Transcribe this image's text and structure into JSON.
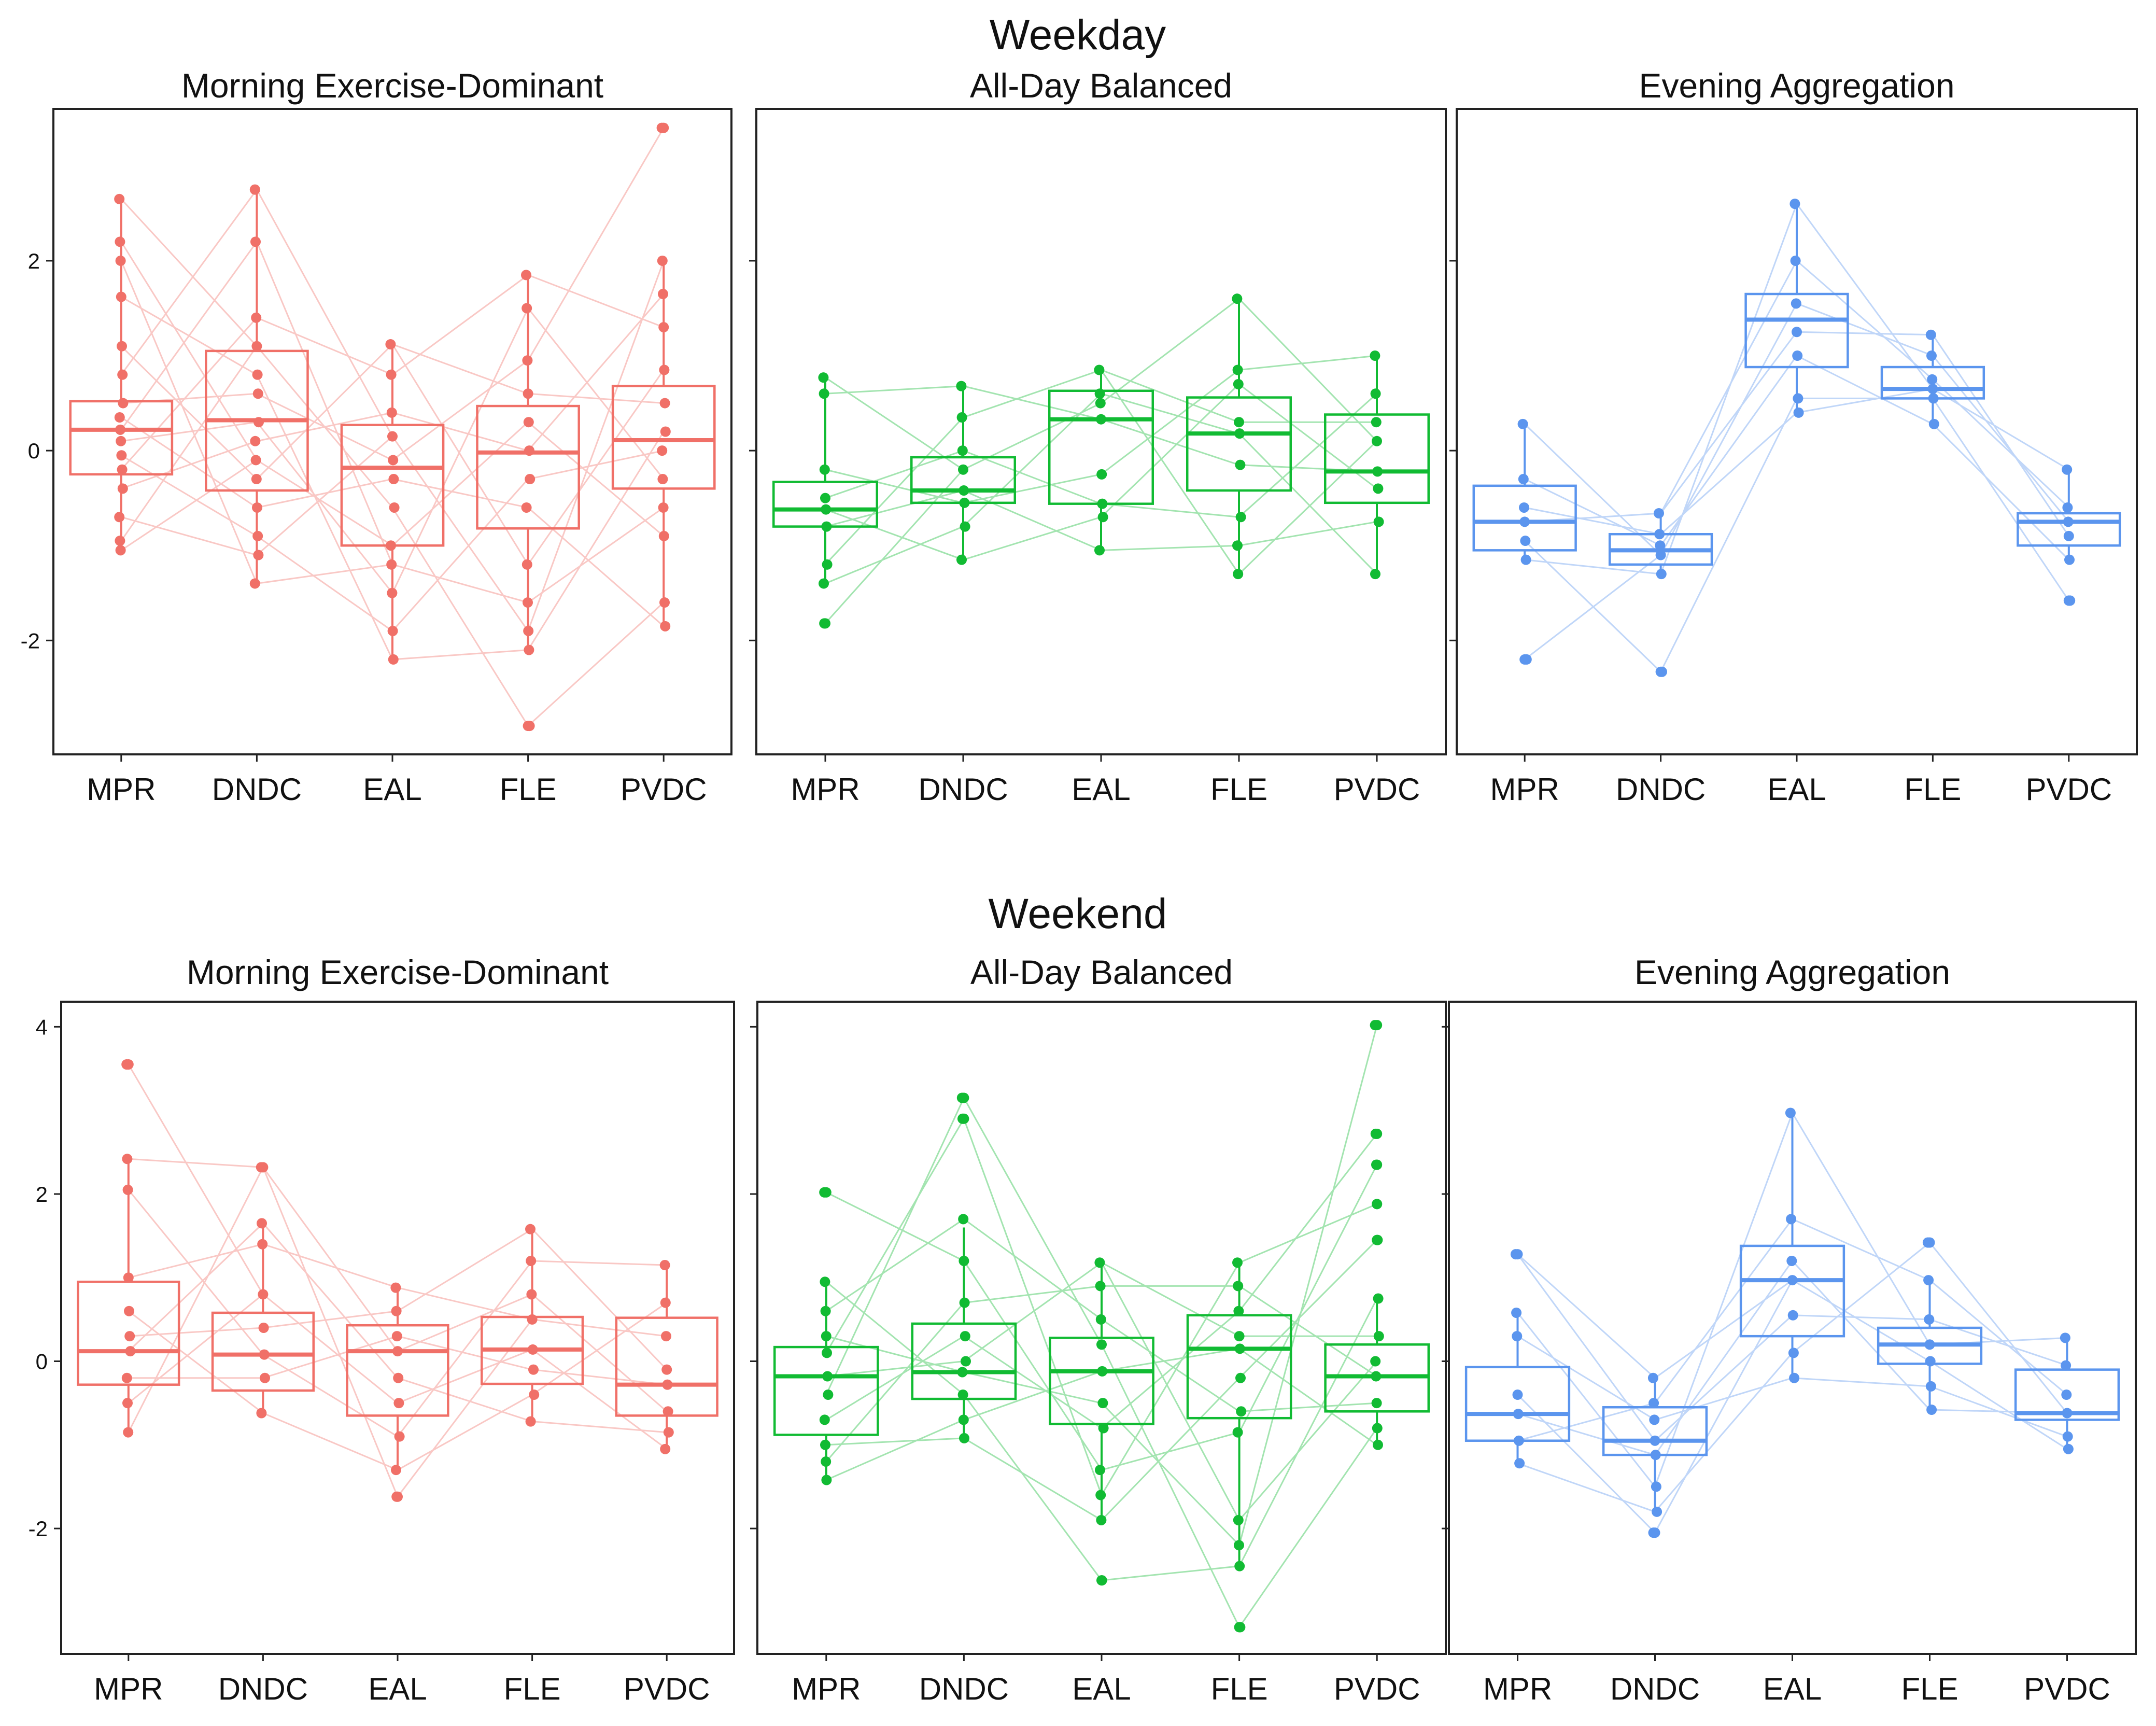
{
  "titles": {
    "weekday": "Weekday",
    "weekend": "Weekend"
  },
  "colors": {
    "morning": "#F07068",
    "balanced": "#11BB33",
    "evening": "#5B95EE"
  },
  "chart_data": [
    {
      "type": "box",
      "section": "Weekday",
      "title": "Morning Exercise-Dominant",
      "color": "#F07068",
      "categories": [
        "MPR",
        "DNDC",
        "EAL",
        "FLE",
        "PVDC"
      ],
      "yticks": [
        -2,
        0,
        2
      ],
      "ytick_labels": [
        "-2",
        "0",
        "2"
      ],
      "ylim": [
        -3.2,
        3.6
      ],
      "boxes": [
        {
          "q1": -0.25,
          "median": 0.22,
          "q3": 0.52,
          "whisker_low": -1.05,
          "whisker_high": 2.65
        },
        {
          "q1": -0.42,
          "median": 0.32,
          "q3": 1.05,
          "whisker_low": -1.4,
          "whisker_high": 2.75
        },
        {
          "q1": -1.0,
          "median": -0.18,
          "q3": 0.27,
          "whisker_low": -2.2,
          "whisker_high": 1.12
        },
        {
          "q1": -0.82,
          "median": -0.02,
          "q3": 0.47,
          "whisker_low": -2.1,
          "whisker_high": 1.85
        },
        {
          "q1": -0.4,
          "median": 0.11,
          "q3": 0.68,
          "whisker_low": -1.85,
          "whisker_high": 2.0
        }
      ],
      "outliers": [
        [],
        [],
        [],
        [
          -2.9
        ],
        [
          3.4
        ]
      ],
      "points": [
        [
          2.65,
          2.2,
          2.0,
          1.62,
          1.1,
          0.8,
          0.5,
          0.35,
          0.22,
          0.1,
          -0.05,
          -0.2,
          -0.4,
          -0.7,
          -0.95,
          -1.05
        ],
        [
          2.75,
          2.2,
          1.4,
          1.1,
          0.8,
          0.6,
          0.3,
          0.1,
          -0.1,
          -0.3,
          -0.6,
          -0.9,
          -1.1,
          -1.4
        ],
        [
          1.12,
          0.8,
          0.4,
          0.15,
          -0.1,
          -0.3,
          -0.6,
          -1.0,
          -1.2,
          -1.5,
          -1.9,
          -2.2
        ],
        [
          1.85,
          1.5,
          0.95,
          0.6,
          0.3,
          0.0,
          -0.3,
          -0.6,
          -1.2,
          -1.6,
          -1.9,
          -2.1,
          -2.9
        ],
        [
          3.4,
          2.0,
          1.65,
          1.3,
          0.85,
          0.5,
          0.2,
          0.0,
          -0.3,
          -0.6,
          -0.9,
          -1.6,
          -1.85
        ]
      ]
    },
    {
      "type": "box",
      "section": "Weekday",
      "title": "All-Day Balanced",
      "color": "#11BB33",
      "categories": [
        "MPR",
        "DNDC",
        "EAL",
        "FLE",
        "PVDC"
      ],
      "yticks": [
        -2,
        0,
        2
      ],
      "ytick_labels": [],
      "ylim": [
        -3.2,
        3.6
      ],
      "boxes": [
        {
          "q1": -0.8,
          "median": -0.62,
          "q3": -0.33,
          "whisker_low": -1.4,
          "whisker_high": 0.77
        },
        {
          "q1": -0.55,
          "median": -0.42,
          "q3": -0.07,
          "whisker_low": -1.15,
          "whisker_high": 0.68
        },
        {
          "q1": -0.56,
          "median": 0.33,
          "q3": 0.63,
          "whisker_low": -1.05,
          "whisker_high": 0.85
        },
        {
          "q1": -0.42,
          "median": 0.18,
          "q3": 0.56,
          "whisker_low": -1.3,
          "whisker_high": 1.6
        },
        {
          "q1": -0.55,
          "median": -0.22,
          "q3": 0.38,
          "whisker_low": -1.3,
          "whisker_high": 1.0
        }
      ],
      "outliers": [
        [
          -1.82
        ],
        [],
        [],
        [],
        []
      ],
      "points": [
        [
          0.77,
          0.6,
          -0.2,
          -0.5,
          -0.62,
          -0.8,
          -1.2,
          -1.4,
          -1.82
        ],
        [
          0.68,
          0.35,
          0.0,
          -0.2,
          -0.42,
          -0.55,
          -0.8,
          -1.15
        ],
        [
          0.85,
          0.6,
          0.5,
          0.33,
          -0.25,
          -0.56,
          -0.7,
          -1.05
        ],
        [
          1.6,
          0.85,
          0.7,
          0.3,
          0.18,
          -0.15,
          -0.7,
          -1.0,
          -1.3
        ],
        [
          1.0,
          0.6,
          0.3,
          0.1,
          -0.22,
          -0.4,
          -0.75,
          -1.3
        ]
      ]
    },
    {
      "type": "box",
      "section": "Weekday",
      "title": "Evening Aggregation",
      "color": "#5B95EE",
      "categories": [
        "MPR",
        "DNDC",
        "EAL",
        "FLE",
        "PVDC"
      ],
      "yticks": [
        -2,
        0,
        2
      ],
      "ytick_labels": [],
      "ylim": [
        -3.2,
        3.6
      ],
      "boxes": [
        {
          "q1": -1.05,
          "median": -0.75,
          "q3": -0.37,
          "whisker_low": -1.15,
          "whisker_high": 0.28
        },
        {
          "q1": -1.2,
          "median": -1.05,
          "q3": -0.88,
          "whisker_low": -1.3,
          "whisker_high": -0.66
        },
        {
          "q1": 0.88,
          "median": 1.38,
          "q3": 1.65,
          "whisker_low": 0.4,
          "whisker_high": 2.6
        },
        {
          "q1": 0.55,
          "median": 0.65,
          "q3": 0.88,
          "whisker_low": 0.28,
          "whisker_high": 1.22
        },
        {
          "q1": -1.0,
          "median": -0.75,
          "q3": -0.66,
          "whisker_low": -1.15,
          "whisker_high": -0.2
        }
      ],
      "outliers": [
        [
          -2.2
        ],
        [
          -2.33
        ],
        [],
        [],
        [
          -1.58
        ]
      ],
      "points": [
        [
          0.28,
          -0.3,
          -0.6,
          -0.75,
          -0.95,
          -1.15,
          -2.2
        ],
        [
          -0.66,
          -0.88,
          -1.0,
          -1.1,
          -1.3,
          -2.33
        ],
        [
          2.6,
          2.0,
          1.55,
          1.25,
          1.0,
          0.55,
          0.4
        ],
        [
          1.22,
          1.0,
          0.75,
          0.65,
          0.55,
          0.28
        ],
        [
          -0.2,
          -0.6,
          -0.75,
          -0.9,
          -1.15,
          -1.58
        ]
      ]
    },
    {
      "type": "box",
      "section": "Weekend",
      "title": "Morning Exercise-Dominant",
      "color": "#F07068",
      "categories": [
        "MPR",
        "DNDC",
        "EAL",
        "FLE",
        "PVDC"
      ],
      "yticks": [
        -2,
        0,
        2,
        4
      ],
      "ytick_labels": [
        "-2",
        "0",
        "2",
        "4"
      ],
      "ylim": [
        -3.5,
        4.3
      ],
      "boxes": [
        {
          "q1": -0.28,
          "median": 0.12,
          "q3": 0.95,
          "whisker_low": -0.85,
          "whisker_high": 2.42
        },
        {
          "q1": -0.35,
          "median": 0.08,
          "q3": 0.58,
          "whisker_low": -0.62,
          "whisker_high": 1.65
        },
        {
          "q1": -0.65,
          "median": 0.12,
          "q3": 0.43,
          "whisker_low": -1.3,
          "whisker_high": 0.88
        },
        {
          "q1": -0.27,
          "median": 0.14,
          "q3": 0.53,
          "whisker_low": -0.72,
          "whisker_high": 1.58
        },
        {
          "q1": -0.65,
          "median": -0.28,
          "q3": 0.52,
          "whisker_low": -1.05,
          "whisker_high": 1.15
        }
      ],
      "outliers": [
        [
          3.55
        ],
        [
          2.32
        ],
        [
          -1.62
        ],
        [],
        []
      ],
      "points": [
        [
          3.55,
          2.42,
          2.05,
          1.0,
          0.6,
          0.3,
          0.12,
          -0.2,
          -0.5,
          -0.85
        ],
        [
          2.32,
          1.65,
          1.4,
          0.8,
          0.4,
          0.08,
          -0.2,
          -0.62
        ],
        [
          0.88,
          0.6,
          0.3,
          0.12,
          -0.2,
          -0.5,
          -0.9,
          -1.3,
          -1.62
        ],
        [
          1.58,
          1.2,
          0.8,
          0.5,
          0.14,
          -0.1,
          -0.4,
          -0.72
        ],
        [
          1.15,
          0.7,
          0.3,
          -0.1,
          -0.28,
          -0.6,
          -0.85,
          -1.05
        ]
      ]
    },
    {
      "type": "box",
      "section": "Weekend",
      "title": "All-Day Balanced",
      "color": "#11BB33",
      "categories": [
        "MPR",
        "DNDC",
        "EAL",
        "FLE",
        "PVDC"
      ],
      "yticks": [
        -2,
        0,
        2,
        4
      ],
      "ytick_labels": [],
      "ylim": [
        -3.5,
        4.3
      ],
      "boxes": [
        {
          "q1": -0.88,
          "median": -0.18,
          "q3": 0.17,
          "whisker_low": -1.42,
          "whisker_high": 0.95
        },
        {
          "q1": -0.45,
          "median": -0.13,
          "q3": 0.45,
          "whisker_low": -0.92,
          "whisker_high": 1.6
        },
        {
          "q1": -0.75,
          "median": -0.12,
          "q3": 0.28,
          "whisker_low": -1.9,
          "whisker_high": 1.18
        },
        {
          "q1": -0.68,
          "median": 0.15,
          "q3": 0.55,
          "whisker_low": -2.45,
          "whisker_high": 1.18
        },
        {
          "q1": -0.6,
          "median": -0.18,
          "q3": 0.2,
          "whisker_low": -1.0,
          "whisker_high": 0.75
        }
      ],
      "outliers": [
        [
          2.02
        ],
        [
          3.15,
          2.9
        ],
        [
          -2.62
        ],
        [
          -3.18
        ],
        [
          4.02,
          2.72,
          2.35,
          1.88,
          1.45
        ]
      ],
      "points": [
        [
          2.02,
          0.95,
          0.6,
          0.3,
          0.1,
          -0.18,
          -0.4,
          -0.7,
          -1.0,
          -1.2,
          -1.42
        ],
        [
          3.15,
          2.9,
          1.7,
          1.2,
          0.7,
          0.3,
          0.0,
          -0.13,
          -0.4,
          -0.7,
          -0.92
        ],
        [
          1.18,
          0.9,
          0.5,
          0.2,
          -0.12,
          -0.5,
          -0.8,
          -1.3,
          -1.6,
          -1.9,
          -2.62
        ],
        [
          1.18,
          0.9,
          0.6,
          0.3,
          0.15,
          -0.2,
          -0.6,
          -0.85,
          -1.9,
          -2.2,
          -2.45,
          -3.18
        ],
        [
          4.02,
          2.72,
          2.35,
          1.88,
          1.45,
          0.75,
          0.3,
          0.0,
          -0.18,
          -0.5,
          -0.8,
          -1.0
        ]
      ]
    },
    {
      "type": "box",
      "section": "Weekend",
      "title": "Evening Aggregation",
      "color": "#5B95EE",
      "categories": [
        "MPR",
        "DNDC",
        "EAL",
        "FLE",
        "PVDC"
      ],
      "yticks": [
        -2,
        0,
        2,
        4
      ],
      "ytick_labels": [],
      "ylim": [
        -3.5,
        4.3
      ],
      "boxes": [
        {
          "q1": -0.95,
          "median": -0.63,
          "q3": -0.07,
          "whisker_low": -1.22,
          "whisker_high": 0.58
        },
        {
          "q1": -1.12,
          "median": -0.95,
          "q3": -0.55,
          "whisker_low": -1.8,
          "whisker_high": -0.2
        },
        {
          "q1": 0.3,
          "median": 0.97,
          "q3": 1.38,
          "whisker_low": -0.2,
          "whisker_high": 2.97
        },
        {
          "q1": -0.03,
          "median": 0.2,
          "q3": 0.4,
          "whisker_low": -0.58,
          "whisker_high": 0.97
        },
        {
          "q1": -0.7,
          "median": -0.62,
          "q3": -0.1,
          "whisker_low": -1.05,
          "whisker_high": 0.28
        }
      ],
      "outliers": [
        [
          1.28
        ],
        [
          -2.05
        ],
        [],
        [
          1.42
        ],
        []
      ],
      "points": [
        [
          1.28,
          0.58,
          0.3,
          -0.4,
          -0.63,
          -0.95,
          -1.22
        ],
        [
          -0.2,
          -0.5,
          -0.7,
          -0.95,
          -1.12,
          -1.5,
          -1.8,
          -2.05
        ],
        [
          2.97,
          1.7,
          1.2,
          0.97,
          0.55,
          0.1,
          -0.2
        ],
        [
          1.42,
          0.97,
          0.5,
          0.2,
          0.0,
          -0.3,
          -0.58
        ],
        [
          0.28,
          -0.05,
          -0.4,
          -0.62,
          -0.9,
          -1.05
        ]
      ]
    }
  ]
}
